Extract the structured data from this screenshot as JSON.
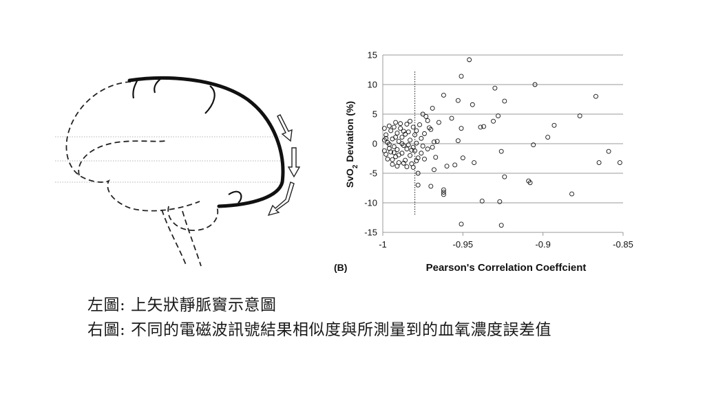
{
  "captions": {
    "left": "左圖: 上矢狀靜脈竇示意圖",
    "right": "右圖: 不同的電磁波訊號結果相似度與所測量到的血氧濃度誤差值"
  },
  "chart_data": {
    "type": "scatter",
    "panel_label": "(B)",
    "xlabel": "Pearson's Correlation Coeffcient",
    "ylabel_main": "SvO",
    "ylabel_sub": "2",
    "ylabel_rest": " Deviation (%)",
    "xlim": [
      -1,
      -0.85
    ],
    "ylim": [
      -15,
      15
    ],
    "x_ticks": [
      -1,
      -0.95,
      -0.9,
      -0.85
    ],
    "x_tick_labels": [
      "-1",
      "-0.95",
      "-0.9",
      "-0.85"
    ],
    "y_ticks": [
      15,
      10,
      5,
      0,
      -5,
      -10,
      -15
    ],
    "y_tick_labels": [
      "15",
      "10",
      "5",
      "0",
      "-5",
      "-10",
      "-15"
    ],
    "grid": "horizontal",
    "reference_line_x": -0.98,
    "marker": "open-circle",
    "points": [
      [
        -0.946,
        14.2
      ],
      [
        -0.951,
        11.4
      ],
      [
        -0.93,
        9.4
      ],
      [
        -0.905,
        10.0
      ],
      [
        -0.867,
        8.0
      ],
      [
        -0.962,
        8.2
      ],
      [
        -0.953,
        7.3
      ],
      [
        -0.944,
        6.6
      ],
      [
        -0.924,
        7.2
      ],
      [
        -0.969,
        6.0
      ],
      [
        -0.877,
        4.7
      ],
      [
        -0.928,
        4.7
      ],
      [
        -0.957,
        4.3
      ],
      [
        -0.965,
        3.6
      ],
      [
        -0.931,
        3.8
      ],
      [
        -0.893,
        3.1
      ],
      [
        -0.939,
        2.8
      ],
      [
        -0.937,
        2.9
      ],
      [
        -0.97,
        2.4
      ],
      [
        -0.951,
        2.6
      ],
      [
        -0.897,
        1.1
      ],
      [
        -0.953,
        0.5
      ],
      [
        -0.906,
        -0.2
      ],
      [
        -0.966,
        0.4
      ],
      [
        -0.926,
        -1.3
      ],
      [
        -0.859,
        -1.3
      ],
      [
        -0.852,
        -3.2
      ],
      [
        -0.865,
        -3.2
      ],
      [
        -0.943,
        -3.2
      ],
      [
        -0.95,
        -2.4
      ],
      [
        -0.96,
        -3.8
      ],
      [
        -0.955,
        -3.6
      ],
      [
        -0.968,
        -4.4
      ],
      [
        -0.924,
        -5.6
      ],
      [
        -0.909,
        -6.3
      ],
      [
        -0.908,
        -6.6
      ],
      [
        -0.962,
        -7.8
      ],
      [
        -0.962,
        -8.2
      ],
      [
        -0.962,
        -8.6
      ],
      [
        -0.97,
        -7.2
      ],
      [
        -0.978,
        -7.0
      ],
      [
        -0.882,
        -8.5
      ],
      [
        -0.938,
        -9.7
      ],
      [
        -0.927,
        -9.8
      ],
      [
        -0.951,
        -13.6
      ],
      [
        -0.926,
        -13.8
      ],
      [
        -0.975,
        5.0
      ],
      [
        -0.973,
        4.6
      ],
      [
        -0.971,
        2.7
      ],
      [
        -0.968,
        0.3
      ],
      [
        -0.972,
        -0.9
      ],
      [
        -0.976,
        -1.6
      ],
      [
        -0.974,
        -2.6
      ],
      [
        -0.979,
        -2.9
      ],
      [
        -0.981,
        -4.0
      ],
      [
        -0.978,
        -5.0
      ],
      [
        -0.967,
        -2.3
      ],
      [
        -0.969,
        -0.6
      ],
      [
        -0.999,
        2.6
      ],
      [
        -0.998,
        1.5
      ],
      [
        -0.997,
        0.2
      ],
      [
        -0.996,
        -0.8
      ],
      [
        -0.998,
        -1.8
      ],
      [
        -0.995,
        2.2
      ],
      [
        -0.994,
        0.8
      ],
      [
        -0.993,
        -0.5
      ],
      [
        -0.995,
        -1.4
      ],
      [
        -0.994,
        -2.7
      ],
      [
        -0.992,
        3.6
      ],
      [
        -0.991,
        1.8
      ],
      [
        -0.99,
        0.4
      ],
      [
        -0.991,
        -1.0
      ],
      [
        -0.992,
        -2.2
      ],
      [
        -0.99,
        -3.2
      ],
      [
        -0.989,
        2.6
      ],
      [
        -0.988,
        1.1
      ],
      [
        -0.987,
        -0.3
      ],
      [
        -0.988,
        -1.6
      ],
      [
        -0.986,
        -2.8
      ],
      [
        -0.985,
        3.3
      ],
      [
        -0.984,
        2.0
      ],
      [
        -0.983,
        0.6
      ],
      [
        -0.985,
        -0.9
      ],
      [
        -0.983,
        -2.0
      ],
      [
        -0.982,
        -3.4
      ],
      [
        -0.981,
        2.8
      ],
      [
        -0.98,
        1.5
      ],
      [
        -0.979,
        0.1
      ],
      [
        -0.98,
        -1.2
      ],
      [
        -0.978,
        -2.4
      ],
      [
        -0.996,
        3.0
      ],
      [
        -0.993,
        2.8
      ],
      [
        -0.989,
        3.4
      ],
      [
        -0.986,
        1.6
      ],
      [
        -0.984,
        -0.2
      ],
      [
        -0.982,
        -1.1
      ],
      [
        -0.987,
        -3.3
      ],
      [
        -0.991,
        -3.8
      ],
      [
        -0.994,
        -3.5
      ],
      [
        -0.997,
        -2.6
      ],
      [
        -0.999,
        -1.2
      ],
      [
        -0.999,
        0.6
      ],
      [
        -0.985,
        -3.9
      ],
      [
        -0.977,
        3.2
      ],
      [
        -0.976,
        0.9
      ],
      [
        -0.975,
        -0.4
      ],
      [
        -0.974,
        1.7
      ],
      [
        -0.972,
        3.9
      ],
      [
        -0.988,
        0.0
      ],
      [
        -0.992,
        1.1
      ],
      [
        -0.996,
        -0.1
      ],
      [
        -0.99,
        -1.9
      ],
      [
        -0.983,
        3.8
      ],
      [
        -0.981,
        -0.6
      ],
      [
        -0.979,
        2.2
      ],
      [
        -0.987,
        2.1
      ],
      [
        -0.993,
        -1.5
      ],
      [
        -0.998,
        0.9
      ]
    ]
  }
}
